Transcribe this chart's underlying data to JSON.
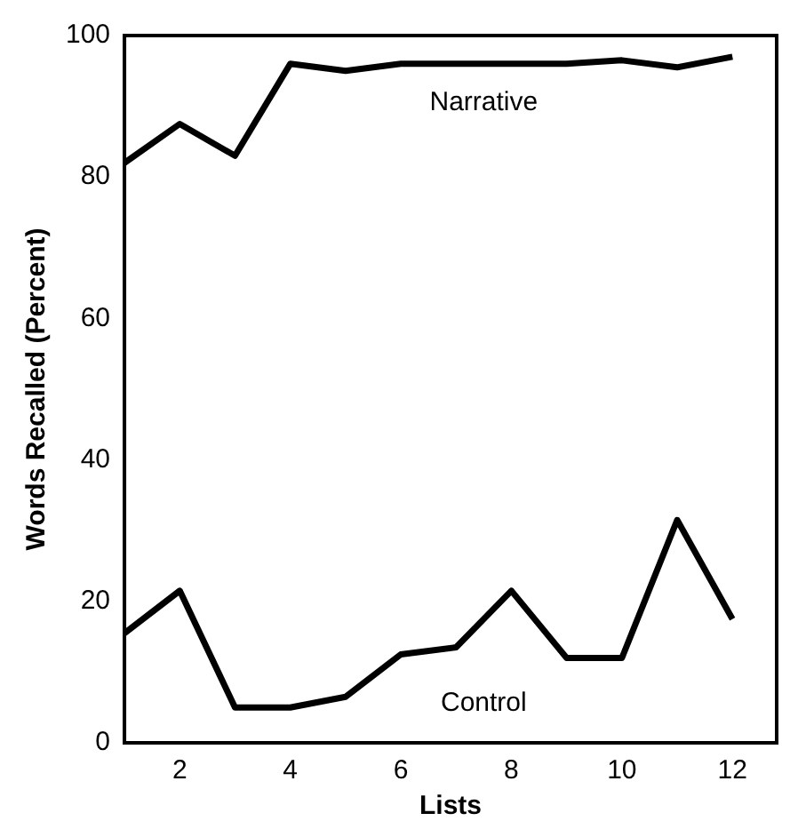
{
  "chart_data": {
    "type": "line",
    "xlabel": "Lists",
    "ylabel": "Words Recalled (Percent)",
    "x": [
      1,
      2,
      3,
      4,
      5,
      6,
      7,
      8,
      9,
      10,
      11,
      12
    ],
    "series": [
      {
        "name": "Narrative",
        "color": "#000000",
        "values": [
          82,
          87.5,
          83,
          96,
          95,
          96,
          96,
          96,
          96,
          96.5,
          95.5,
          97
        ]
      },
      {
        "name": "Control",
        "color": "#000000",
        "values": [
          15.5,
          21.5,
          5,
          5,
          6.5,
          12.5,
          13.5,
          21.5,
          12,
          12,
          31.5,
          17.5
        ]
      }
    ],
    "xlim": [
      1,
      12.8
    ],
    "xticks": [
      2,
      4,
      6,
      8,
      10,
      12
    ],
    "ylim": [
      0,
      100
    ],
    "yticks": [
      0,
      20,
      40,
      60,
      80,
      100
    ],
    "grid": false,
    "legend": false,
    "marker": "none",
    "line_style": "solid"
  }
}
